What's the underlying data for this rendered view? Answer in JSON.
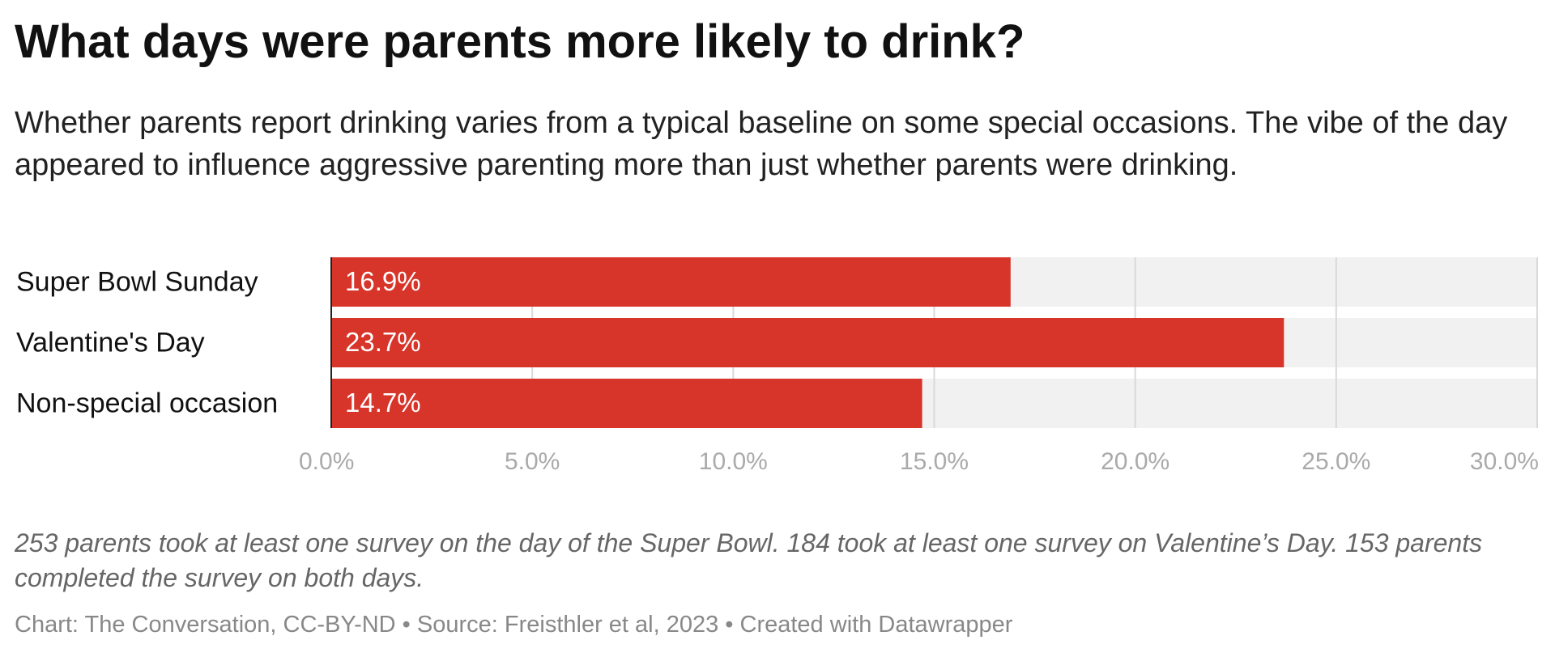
{
  "chart_data": {
    "type": "bar",
    "orientation": "horizontal",
    "title": "What days were parents more likely to drink?",
    "subtitle": "Whether parents report drinking varies from a typical baseline on some special occasions. The vibe of the day appeared to influence aggressive parenting more than just whether parents were drinking.",
    "categories": [
      "Super Bowl Sunday",
      "Valentine's Day",
      "Non-special occasion"
    ],
    "values": [
      16.9,
      23.7,
      14.7
    ],
    "value_labels": [
      "16.9%",
      "23.7%",
      "14.7%"
    ],
    "color": "#d7342a",
    "xlim": [
      0,
      30
    ],
    "xticks": [
      {
        "value": 0,
        "label": "0.0%"
      },
      {
        "value": 5,
        "label": "5.0%"
      },
      {
        "value": 10,
        "label": "10.0%"
      },
      {
        "value": 15,
        "label": "15.0%"
      },
      {
        "value": 20,
        "label": "20.0%"
      },
      {
        "value": 25,
        "label": "25.0%"
      },
      {
        "value": 30,
        "label": "30.0%"
      }
    ],
    "grid": true,
    "notes": "253 parents took at least one survey on the day of the Super Bowl. 184 took at least one survey on Valentine’s Day. 153 parents completed the survey on both days.",
    "footer": "Chart: The Conversation, CC-BY-ND • Source: Freisthler et al, 2023 • Created with Datawrapper"
  }
}
